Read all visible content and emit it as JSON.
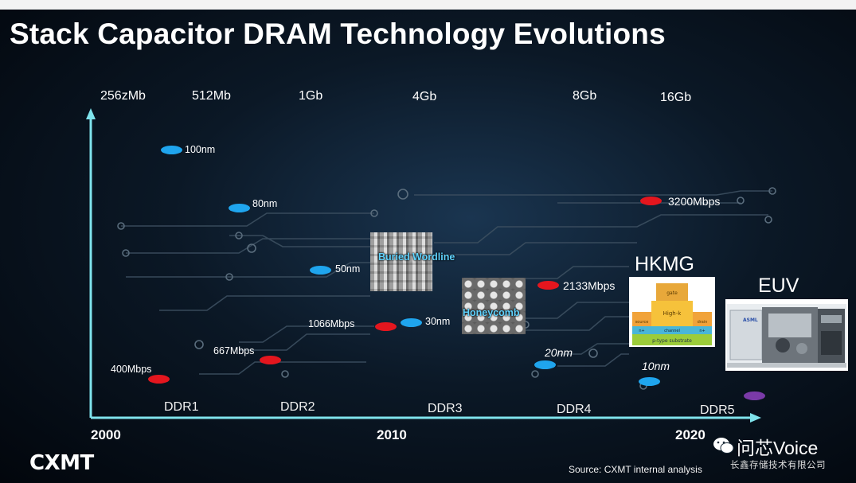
{
  "title": "Stack Capacitor DRAM Technology Evolutions",
  "capacities": [
    "256zMb",
    "512Mb",
    "1Gb",
    "4Gb",
    "8Gb",
    "16Gb"
  ],
  "ddr_generations": [
    "DDR1",
    "DDR2",
    "DDR3",
    "DDR4",
    "DDR5"
  ],
  "years": [
    "2000",
    "2010",
    "2020"
  ],
  "nodes": [
    "100nm",
    "80nm",
    "50nm",
    "30nm",
    "20nm",
    "10nm"
  ],
  "speeds": [
    "400Mbps",
    "667Mbps",
    "1066Mbps",
    "2133Mbps",
    "3200Mbps"
  ],
  "images": {
    "buried_wordline": "Buried Wordline",
    "honeycomb": "Honeycomb",
    "hkmg_layers": {
      "gate": "gate",
      "highk": "High-k",
      "source": "source",
      "channel": "channel",
      "drain": "drain",
      "n_left": "n+",
      "n_right": "n+",
      "substrate": "p-type substrate"
    },
    "euv_brand": "ASML"
  },
  "tags": {
    "hkmg": "HKMG",
    "euv": "EUV"
  },
  "source": "Source:  CXMT internal analysis",
  "logo": "CXMT",
  "watermark": {
    "name": "问芯Voice",
    "company": "长鑫存储技术有限公司"
  },
  "colors": {
    "node_dot": "#1fa5ee",
    "speed_dot": "#e4161e",
    "future_dot": "#7a3aa8",
    "axis": "#7fe3ec"
  }
}
